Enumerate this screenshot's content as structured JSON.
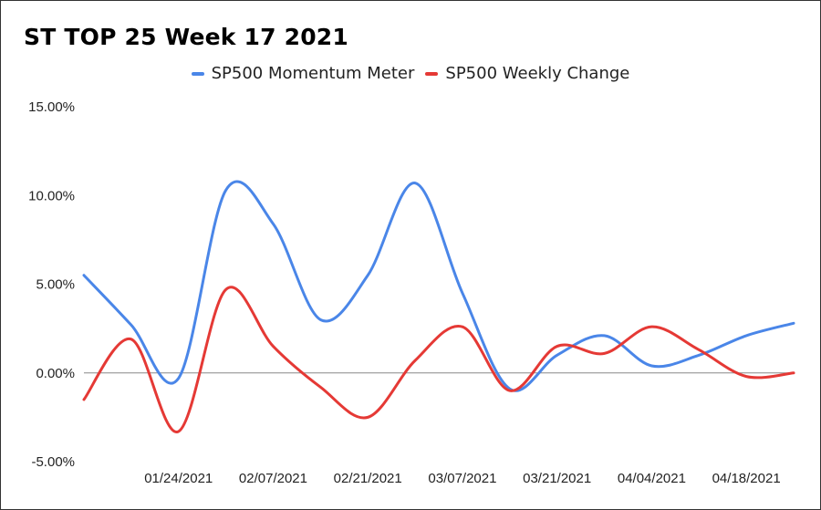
{
  "chart_data": {
    "type": "line",
    "title": "ST TOP 25 Week 17 2021",
    "xlabel": "",
    "ylabel": "",
    "x_ticks": [
      "01/24/2021",
      "02/07/2021",
      "02/21/2021",
      "03/07/2021",
      "03/21/2021",
      "04/04/2021",
      "04/18/2021"
    ],
    "y_ticks": [
      "15.00%",
      "10.00%",
      "5.00%",
      "0.00%",
      "-5.00%"
    ],
    "ylim": [
      -5,
      15
    ],
    "y_unit": "%",
    "legend_position": "top-center",
    "grid": false,
    "x": [
      "01/10/2021",
      "01/17/2021",
      "01/24/2021",
      "01/31/2021",
      "02/07/2021",
      "02/14/2021",
      "02/21/2021",
      "02/28/2021",
      "03/07/2021",
      "03/14/2021",
      "03/21/2021",
      "03/28/2021",
      "04/04/2021",
      "04/11/2021",
      "04/18/2021",
      "04/25/2021"
    ],
    "series": [
      {
        "name": "SP500 Momentum Meter",
        "color": "#4a86e8",
        "values": [
          5.5,
          2.7,
          -0.3,
          10.3,
          8.4,
          3.0,
          5.5,
          10.7,
          4.5,
          -0.9,
          1.0,
          2.1,
          0.4,
          1.0,
          2.1,
          2.8
        ]
      },
      {
        "name": "SP500 Weekly Change",
        "color": "#e53935",
        "values": [
          -1.5,
          1.9,
          -3.3,
          4.7,
          1.5,
          -0.8,
          -2.5,
          0.7,
          2.6,
          -1.0,
          1.5,
          1.1,
          2.6,
          1.3,
          -0.2,
          0.0
        ]
      }
    ]
  }
}
